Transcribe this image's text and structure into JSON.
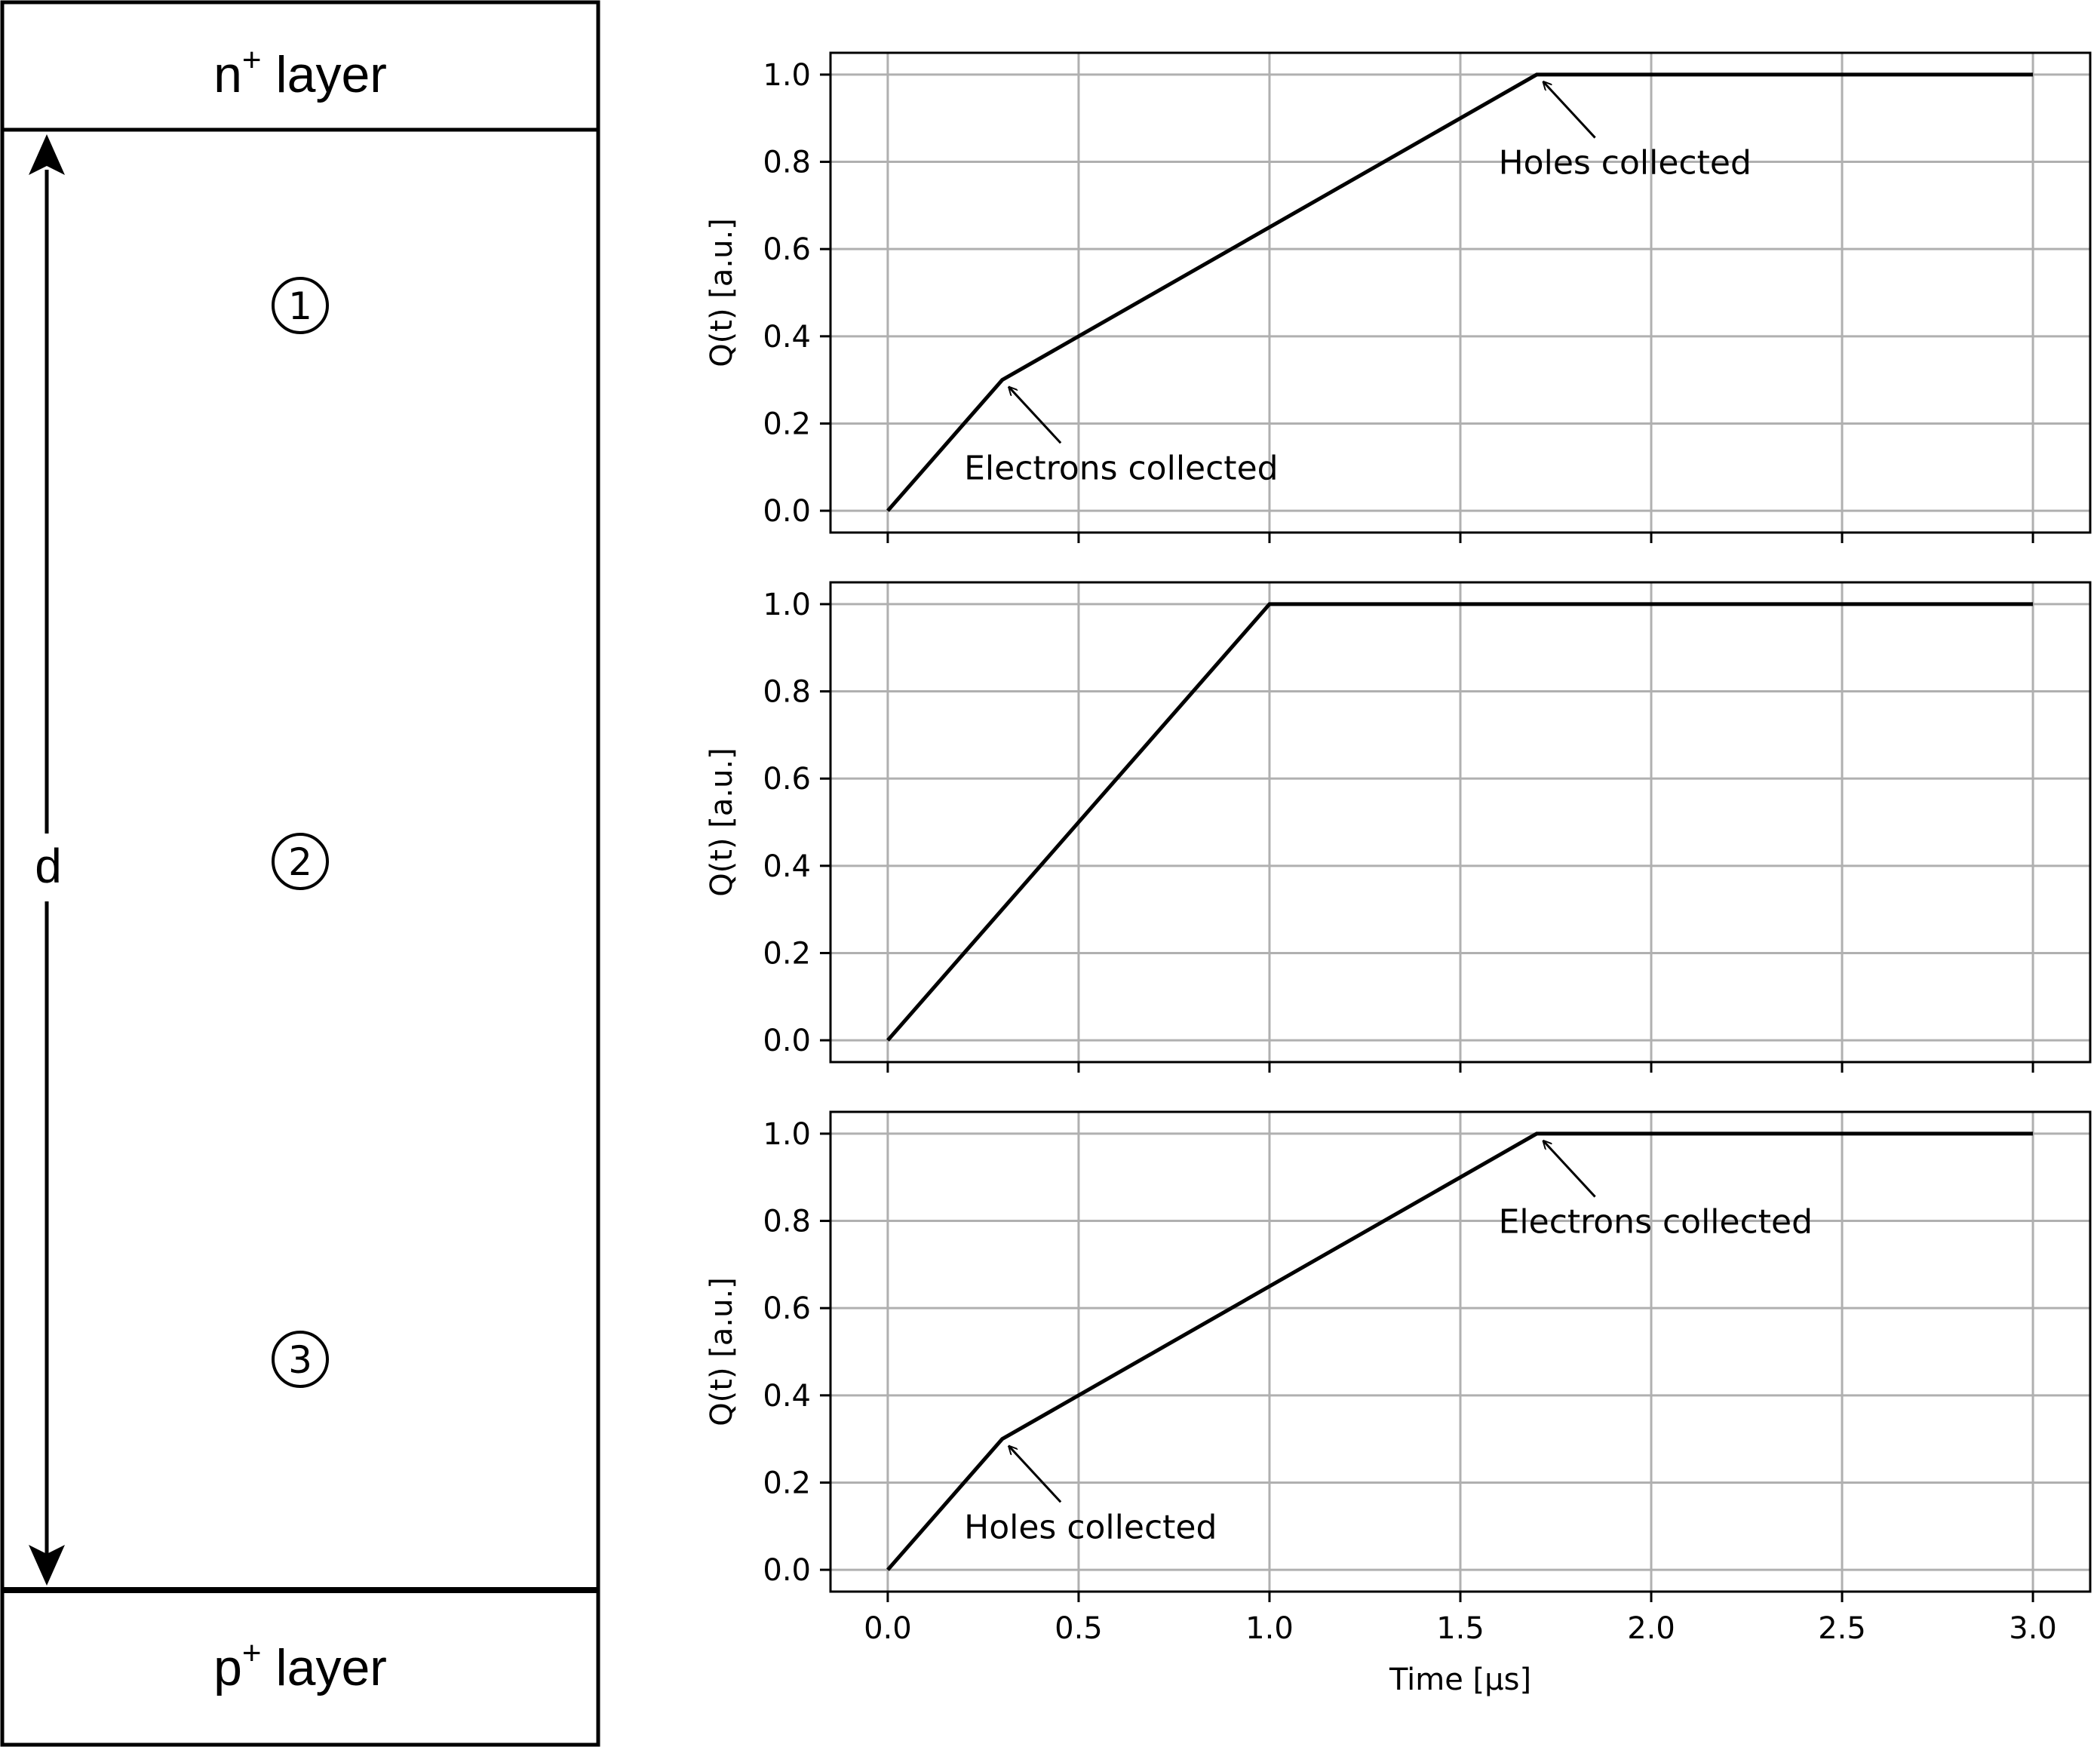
{
  "diagram": {
    "top_layer": {
      "base": "n",
      "sup": "+",
      "rest": " layer"
    },
    "bottom_layer": {
      "base": "p",
      "sup": "+",
      "rest": " layer"
    },
    "thickness_label": "d",
    "regions": [
      "1",
      "2",
      "3"
    ]
  },
  "chart_data": [
    {
      "type": "line",
      "x": [
        0.0,
        0.3,
        1.7,
        3.0
      ],
      "y": [
        0.0,
        0.3,
        1.0,
        1.0
      ],
      "xlim": [
        -0.15,
        3.15
      ],
      "ylim": [
        -0.05,
        1.05
      ],
      "xticks": [
        "0.0",
        "0.5",
        "1.0",
        "1.5",
        "2.0",
        "2.5",
        "3.0"
      ],
      "yticks": [
        "0.0",
        "0.2",
        "0.4",
        "0.6",
        "0.8",
        "1.0"
      ],
      "ylabel": "Q(t) [a.u.]",
      "xlabel": "",
      "grid": true,
      "annotations": [
        {
          "text": "Electrons collected",
          "point": [
            0.3,
            0.3
          ],
          "text_at": [
            0.2,
            0.1
          ]
        },
        {
          "text": "Holes collected",
          "point": [
            1.7,
            1.0
          ],
          "text_at": [
            1.6,
            0.8
          ]
        }
      ]
    },
    {
      "type": "line",
      "x": [
        0.0,
        1.0,
        3.0
      ],
      "y": [
        0.0,
        1.0,
        1.0
      ],
      "xlim": [
        -0.15,
        3.15
      ],
      "ylim": [
        -0.05,
        1.05
      ],
      "xticks": [
        "0.0",
        "0.5",
        "1.0",
        "1.5",
        "2.0",
        "2.5",
        "3.0"
      ],
      "yticks": [
        "0.0",
        "0.2",
        "0.4",
        "0.6",
        "0.8",
        "1.0"
      ],
      "ylabel": "Q(t) [a.u.]",
      "xlabel": "",
      "grid": true,
      "annotations": []
    },
    {
      "type": "line",
      "x": [
        0.0,
        0.3,
        1.7,
        3.0
      ],
      "y": [
        0.0,
        0.3,
        1.0,
        1.0
      ],
      "xlim": [
        -0.15,
        3.15
      ],
      "ylim": [
        -0.05,
        1.05
      ],
      "xticks": [
        "0.0",
        "0.5",
        "1.0",
        "1.5",
        "2.0",
        "2.5",
        "3.0"
      ],
      "yticks": [
        "0.0",
        "0.2",
        "0.4",
        "0.6",
        "0.8",
        "1.0"
      ],
      "ylabel": "Q(t) [a.u.]",
      "xlabel": "Time [μs]",
      "grid": true,
      "annotations": [
        {
          "text": "Holes collected",
          "point": [
            0.3,
            0.3
          ],
          "text_at": [
            0.2,
            0.1
          ]
        },
        {
          "text": "Electrons collected",
          "point": [
            1.7,
            1.0
          ],
          "text_at": [
            1.6,
            0.8
          ]
        }
      ]
    }
  ]
}
